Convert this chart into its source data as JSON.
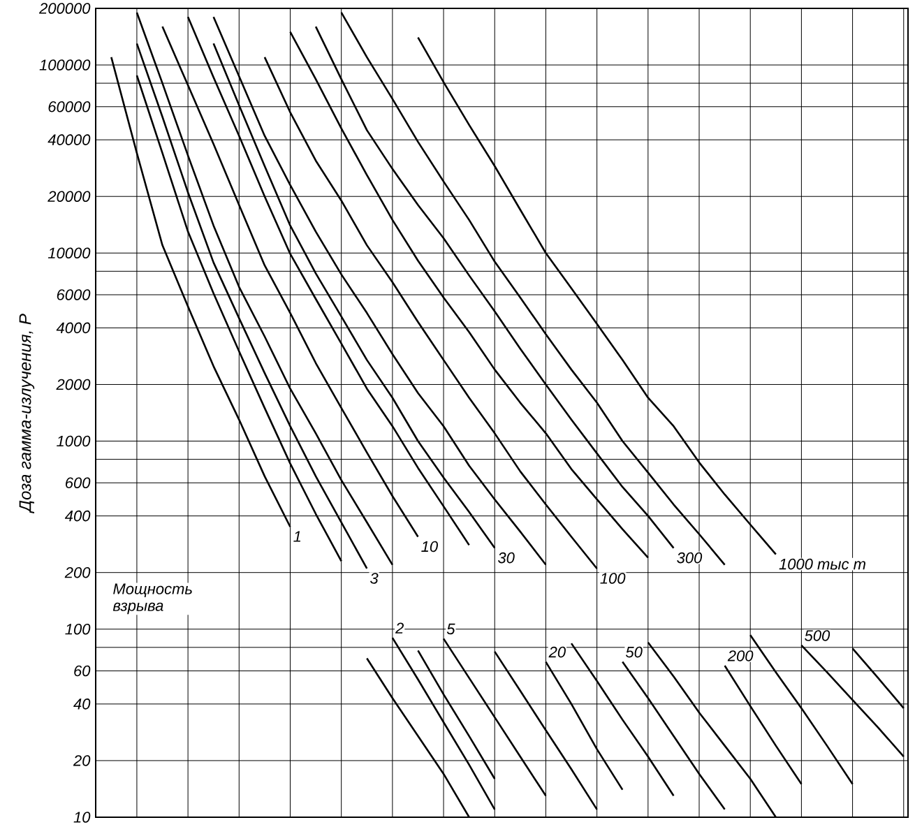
{
  "chart_data": {
    "type": "line",
    "log": true,
    "grid": true,
    "tick_labels": "y",
    "ylabel": "Доза гамма-излучения, Р",
    "legend_title": "Мощность взрыва",
    "categories": [
      null,
      null,
      null,
      null,
      null,
      null,
      null,
      null,
      null,
      null,
      null,
      null,
      null,
      null,
      null,
      null,
      null,
      null,
      null,
      null,
      null,
      null,
      null,
      null,
      null,
      null,
      null,
      null,
      null,
      null,
      null,
      null
    ],
    "ylim": [
      10,
      200000
    ],
    "yticks": [
      200000,
      100000,
      {
        "value": 80000,
        "label": null
      },
      60000,
      40000,
      20000,
      10000,
      {
        "value": 8000,
        "label": null
      },
      6000,
      4000,
      2000,
      1000,
      {
        "value": 800,
        "label": null
      },
      600,
      400,
      200,
      100,
      {
        "value": 80,
        "label": null
      },
      60,
      40,
      20,
      10
    ],
    "series": [
      {
        "name": "1",
        "color": "#000000",
        "values": [
          110000,
          34000,
          11000,
          5200,
          2500,
          1300,
          650,
          350,
          null,
          null,
          70,
          43,
          27,
          17,
          10,
          null,
          null,
          null,
          null,
          null,
          null,
          null,
          null,
          null,
          null,
          null,
          null,
          null,
          null,
          null,
          null,
          null
        ]
      },
      {
        "name": "2",
        "color": "#000000",
        "values": [
          null,
          88000,
          34000,
          13000,
          6100,
          3000,
          1500,
          760,
          410,
          230,
          null,
          90,
          54,
          32,
          19,
          11,
          null,
          null,
          null,
          null,
          null,
          null,
          null,
          null,
          null,
          null,
          null,
          null,
          null,
          null,
          null,
          null
        ]
      },
      {
        "name": "3",
        "color": "#000000",
        "values": [
          null,
          130000,
          53000,
          21000,
          8900,
          4500,
          2300,
          1200,
          650,
          370,
          210,
          null,
          77,
          45,
          27,
          16,
          null,
          null,
          null,
          null,
          null,
          null,
          null,
          null,
          null,
          null,
          null,
          null,
          null,
          null,
          null,
          null
        ]
      },
      {
        "name": "5",
        "color": "#000000",
        "values": [
          null,
          190000,
          80000,
          33000,
          14000,
          6600,
          3600,
          1900,
          1100,
          620,
          370,
          220,
          null,
          89,
          55,
          34,
          21,
          13,
          null,
          null,
          null,
          null,
          null,
          null,
          null,
          null,
          null,
          null,
          null,
          null,
          null,
          null
        ]
      },
      {
        "name": "10",
        "color": "#000000",
        "values": [
          null,
          null,
          160000,
          78000,
          38000,
          18000,
          8600,
          4800,
          2600,
          1500,
          870,
          510,
          310,
          null,
          null,
          76,
          47,
          29,
          18,
          11,
          null,
          null,
          null,
          null,
          null,
          null,
          null,
          null,
          null,
          null,
          null,
          null
        ]
      },
      {
        "name": "20",
        "color": "#000000",
        "values": [
          null,
          null,
          null,
          180000,
          86000,
          42000,
          20000,
          9900,
          5700,
          3300,
          1900,
          1200,
          720,
          450,
          280,
          null,
          null,
          67,
          40,
          23,
          14,
          null,
          null,
          null,
          null,
          null,
          null,
          null,
          null,
          null,
          null,
          null
        ]
      },
      {
        "name": "30",
        "color": "#000000",
        "values": [
          null,
          null,
          null,
          null,
          130000,
          61000,
          29000,
          14000,
          7800,
          4600,
          2700,
          1700,
          1000,
          640,
          420,
          270,
          null,
          null,
          84,
          53,
          33,
          21,
          13,
          null,
          null,
          null,
          null,
          null,
          null,
          null,
          null,
          null
        ]
      },
      {
        "name": "50",
        "color": "#000000",
        "values": [
          null,
          null,
          null,
          null,
          180000,
          87000,
          42000,
          23000,
          13000,
          7700,
          4800,
          2900,
          1800,
          1200,
          740,
          490,
          330,
          220,
          null,
          null,
          67,
          43,
          27,
          17,
          11,
          null,
          null,
          null,
          null,
          null,
          null,
          null
        ]
      },
      {
        "name": "100",
        "color": "#000000",
        "values": [
          null,
          null,
          null,
          null,
          null,
          null,
          110000,
          56000,
          31000,
          19000,
          11000,
          7000,
          4300,
          2700,
          1700,
          1100,
          690,
          460,
          310,
          210,
          null,
          85,
          56,
          36,
          24,
          16,
          10,
          null,
          null,
          null,
          null,
          null
        ]
      },
      {
        "name": "200",
        "color": "#000000",
        "values": [
          null,
          null,
          null,
          null,
          null,
          null,
          null,
          150000,
          84000,
          46000,
          26000,
          15000,
          9100,
          5800,
          3800,
          2400,
          1600,
          1100,
          710,
          490,
          340,
          240,
          null,
          null,
          64,
          39,
          24,
          15,
          null,
          null,
          null,
          null
        ]
      },
      {
        "name": "300",
        "color": "#000000",
        "values": [
          null,
          null,
          null,
          null,
          null,
          null,
          null,
          null,
          160000,
          84000,
          45000,
          28000,
          18000,
          12000,
          7600,
          4900,
          3100,
          2000,
          1300,
          860,
          570,
          400,
          270,
          null,
          null,
          93,
          59,
          38,
          24,
          15,
          null,
          null
        ]
      },
      {
        "name": "500",
        "color": "#000000",
        "values": [
          null,
          null,
          null,
          null,
          null,
          null,
          null,
          null,
          null,
          190000,
          110000,
          66000,
          39000,
          24000,
          15000,
          9000,
          5800,
          3700,
          2400,
          1600,
          1000,
          680,
          460,
          320,
          220,
          null,
          null,
          82,
          59,
          42,
          30,
          21
        ]
      },
      {
        "name": "1000 тыс т",
        "color": "#000000",
        "values": [
          null,
          null,
          null,
          null,
          null,
          null,
          null,
          null,
          null,
          null,
          null,
          null,
          140000,
          81000,
          48000,
          29000,
          17000,
          10000,
          6500,
          4200,
          2700,
          1700,
          1200,
          770,
          520,
          360,
          250,
          null,
          null,
          79,
          55,
          38
        ]
      }
    ]
  }
}
